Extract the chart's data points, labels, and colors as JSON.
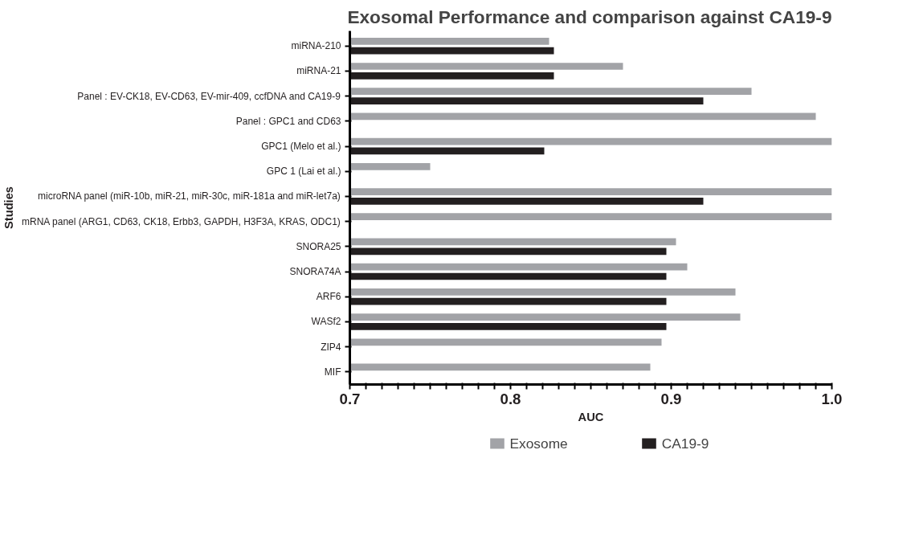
{
  "chart_data": {
    "type": "bar",
    "orientation": "horizontal",
    "title": "Exosomal Performance and comparison against CA19-9",
    "xlabel": "AUC",
    "ylabel": "Studies",
    "categories": [
      "miRNA-210",
      "miRNA-21",
      "Panel : EV-CK18, EV-CD63, EV-mir-409, ccfDNA and CA19-9",
      "Panel : GPC1 and CD63",
      "GPC1 (Melo et al.)",
      "GPC 1 (Lai et al.)",
      "microRNA panel (miR-10b, miR-21, miR-30c, miR-181a and miR-let7a)",
      "mRNA panel (ARG1, CD63, CK18, Erbb3, GAPDH, H3F3A, KRAS, ODC1)",
      "SNORA25",
      "SNORA74A",
      "ARF6",
      "WASf2",
      "ZIP4",
      "MIF"
    ],
    "series": [
      {
        "name": "Exosome",
        "color": "#a2a3a7",
        "values": [
          0.824,
          0.87,
          0.95,
          0.99,
          1.0,
          0.75,
          1.0,
          1.0,
          0.903,
          0.91,
          0.94,
          0.943,
          0.894,
          0.887
        ]
      },
      {
        "name": "CA19-9",
        "color": "#231f20",
        "values": [
          0.827,
          0.827,
          0.92,
          null,
          0.821,
          null,
          0.92,
          null,
          0.897,
          0.897,
          0.897,
          0.897,
          null,
          null
        ]
      }
    ],
    "xlim": [
      0.7,
      1.0
    ],
    "xticks": [
      0.7,
      {
        "value": 0.71,
        "label": null
      },
      {
        "value": 0.72,
        "label": null
      },
      {
        "value": 0.73,
        "label": null
      },
      {
        "value": 0.74,
        "label": null
      },
      {
        "value": 0.75,
        "label": null
      },
      {
        "value": 0.76,
        "label": null
      },
      {
        "value": 0.77,
        "label": null
      },
      {
        "value": 0.78,
        "label": null
      },
      {
        "value": 0.79,
        "label": null
      },
      0.8,
      {
        "value": 0.81,
        "label": null
      },
      {
        "value": 0.82,
        "label": null
      },
      {
        "value": 0.83,
        "label": null
      },
      {
        "value": 0.84,
        "label": null
      },
      {
        "value": 0.85,
        "label": null
      },
      {
        "value": 0.86,
        "label": null
      },
      {
        "value": 0.87,
        "label": null
      },
      {
        "value": 0.88,
        "label": null
      },
      {
        "value": 0.89,
        "label": null
      },
      0.9,
      {
        "value": 0.91,
        "label": null
      },
      {
        "value": 0.92,
        "label": null
      },
      {
        "value": 0.93,
        "label": null
      },
      {
        "value": 0.94,
        "label": null
      },
      {
        "value": 0.95,
        "label": null
      },
      {
        "value": 0.96,
        "label": null
      },
      {
        "value": 0.97,
        "label": null
      },
      {
        "value": 0.98,
        "label": null
      },
      {
        "value": 0.99,
        "label": null
      },
      {
        "value": 1.0,
        "label": "1.0"
      }
    ],
    "grid": false,
    "legend": "bottom"
  }
}
